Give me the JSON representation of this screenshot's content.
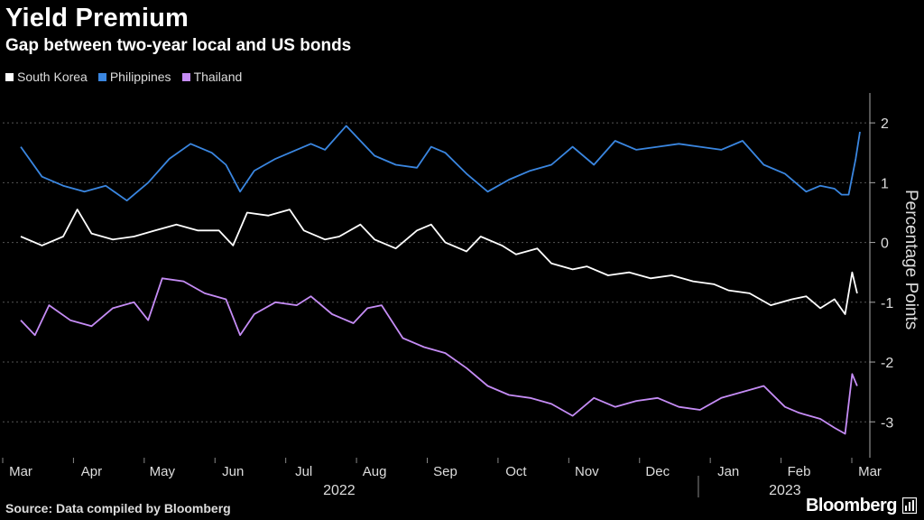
{
  "chart_data": {
    "type": "line",
    "title": "Yield Premium",
    "subtitle": "Gap between two-year local and US bonds",
    "ylabel": "Percentage Points",
    "ylim": [
      -3.6,
      2.5
    ],
    "yticks": [
      2,
      1,
      0,
      -1,
      -2,
      -3
    ],
    "xlim": [
      0,
      12
    ],
    "months": [
      "Mar",
      "Apr",
      "May",
      "Jun",
      "Jul",
      "Aug",
      "Sep",
      "Oct",
      "Nov",
      "Dec",
      "Jan",
      "Feb",
      "Mar"
    ],
    "years": [
      "2022",
      "2023"
    ],
    "series": [
      {
        "name": "South Korea",
        "color": "#ffffff",
        "x": [
          0,
          0.3,
          0.6,
          0.8,
          1.0,
          1.3,
          1.6,
          1.9,
          2.2,
          2.5,
          2.8,
          3.0,
          3.2,
          3.5,
          3.8,
          4.0,
          4.3,
          4.5,
          4.8,
          5.0,
          5.3,
          5.6,
          5.8,
          6.0,
          6.3,
          6.5,
          6.8,
          7.0,
          7.3,
          7.5,
          7.8,
          8.0,
          8.3,
          8.6,
          8.9,
          9.2,
          9.5,
          9.8,
          10.0,
          10.3,
          10.6,
          10.9,
          11.1,
          11.3,
          11.5,
          11.65,
          11.75,
          11.82
        ],
        "values": [
          0.1,
          -0.05,
          0.1,
          0.55,
          0.15,
          0.05,
          0.1,
          0.2,
          0.3,
          0.2,
          0.2,
          -0.05,
          0.5,
          0.45,
          0.55,
          0.2,
          0.05,
          0.1,
          0.3,
          0.05,
          -0.1,
          0.2,
          0.3,
          0.0,
          -0.15,
          0.1,
          -0.05,
          -0.2,
          -0.1,
          -0.35,
          -0.45,
          -0.4,
          -0.55,
          -0.5,
          -0.6,
          -0.55,
          -0.65,
          -0.7,
          -0.8,
          -0.85,
          -1.05,
          -0.95,
          -0.9,
          -1.1,
          -0.95,
          -1.2,
          -0.5,
          -0.85
        ]
      },
      {
        "name": "Philippines",
        "color": "#3a86e0",
        "x": [
          0,
          0.3,
          0.6,
          0.9,
          1.2,
          1.5,
          1.8,
          2.1,
          2.4,
          2.7,
          2.9,
          3.1,
          3.3,
          3.6,
          3.9,
          4.1,
          4.3,
          4.6,
          4.8,
          5.0,
          5.3,
          5.6,
          5.8,
          6.0,
          6.3,
          6.6,
          6.9,
          7.2,
          7.5,
          7.8,
          8.1,
          8.4,
          8.7,
          9.0,
          9.3,
          9.6,
          9.9,
          10.2,
          10.5,
          10.8,
          11.1,
          11.3,
          11.5,
          11.6,
          11.7,
          11.8,
          11.86
        ],
        "values": [
          1.6,
          1.1,
          0.95,
          0.85,
          0.95,
          0.7,
          1.0,
          1.4,
          1.65,
          1.5,
          1.3,
          0.85,
          1.2,
          1.4,
          1.55,
          1.65,
          1.55,
          1.95,
          1.7,
          1.45,
          1.3,
          1.25,
          1.6,
          1.5,
          1.15,
          0.85,
          1.05,
          1.2,
          1.3,
          1.6,
          1.3,
          1.7,
          1.55,
          1.6,
          1.65,
          1.6,
          1.55,
          1.7,
          1.3,
          1.15,
          0.85,
          0.95,
          0.9,
          0.8,
          0.8,
          1.4,
          1.85
        ]
      },
      {
        "name": "Thailand",
        "color": "#c58cf5",
        "x": [
          0,
          0.2,
          0.4,
          0.7,
          1.0,
          1.3,
          1.6,
          1.8,
          2.0,
          2.3,
          2.6,
          2.9,
          3.1,
          3.3,
          3.6,
          3.9,
          4.1,
          4.4,
          4.7,
          4.9,
          5.1,
          5.4,
          5.7,
          6.0,
          6.3,
          6.6,
          6.9,
          7.2,
          7.5,
          7.8,
          8.1,
          8.4,
          8.7,
          9.0,
          9.3,
          9.6,
          9.9,
          10.2,
          10.5,
          10.8,
          11.0,
          11.3,
          11.5,
          11.65,
          11.75,
          11.82
        ],
        "values": [
          -1.3,
          -1.55,
          -1.05,
          -1.3,
          -1.4,
          -1.1,
          -1.0,
          -1.3,
          -0.6,
          -0.65,
          -0.85,
          -0.95,
          -1.55,
          -1.2,
          -1.0,
          -1.05,
          -0.9,
          -1.2,
          -1.35,
          -1.1,
          -1.05,
          -1.6,
          -1.75,
          -1.85,
          -2.1,
          -2.4,
          -2.55,
          -2.6,
          -2.7,
          -2.9,
          -2.6,
          -2.75,
          -2.65,
          -2.6,
          -2.75,
          -2.8,
          -2.6,
          -2.5,
          -2.4,
          -2.75,
          -2.85,
          -2.95,
          -3.1,
          -3.2,
          -2.2,
          -2.4
        ]
      }
    ],
    "source": "Source: Data compiled by Bloomberg",
    "brand": "Bloomberg"
  }
}
